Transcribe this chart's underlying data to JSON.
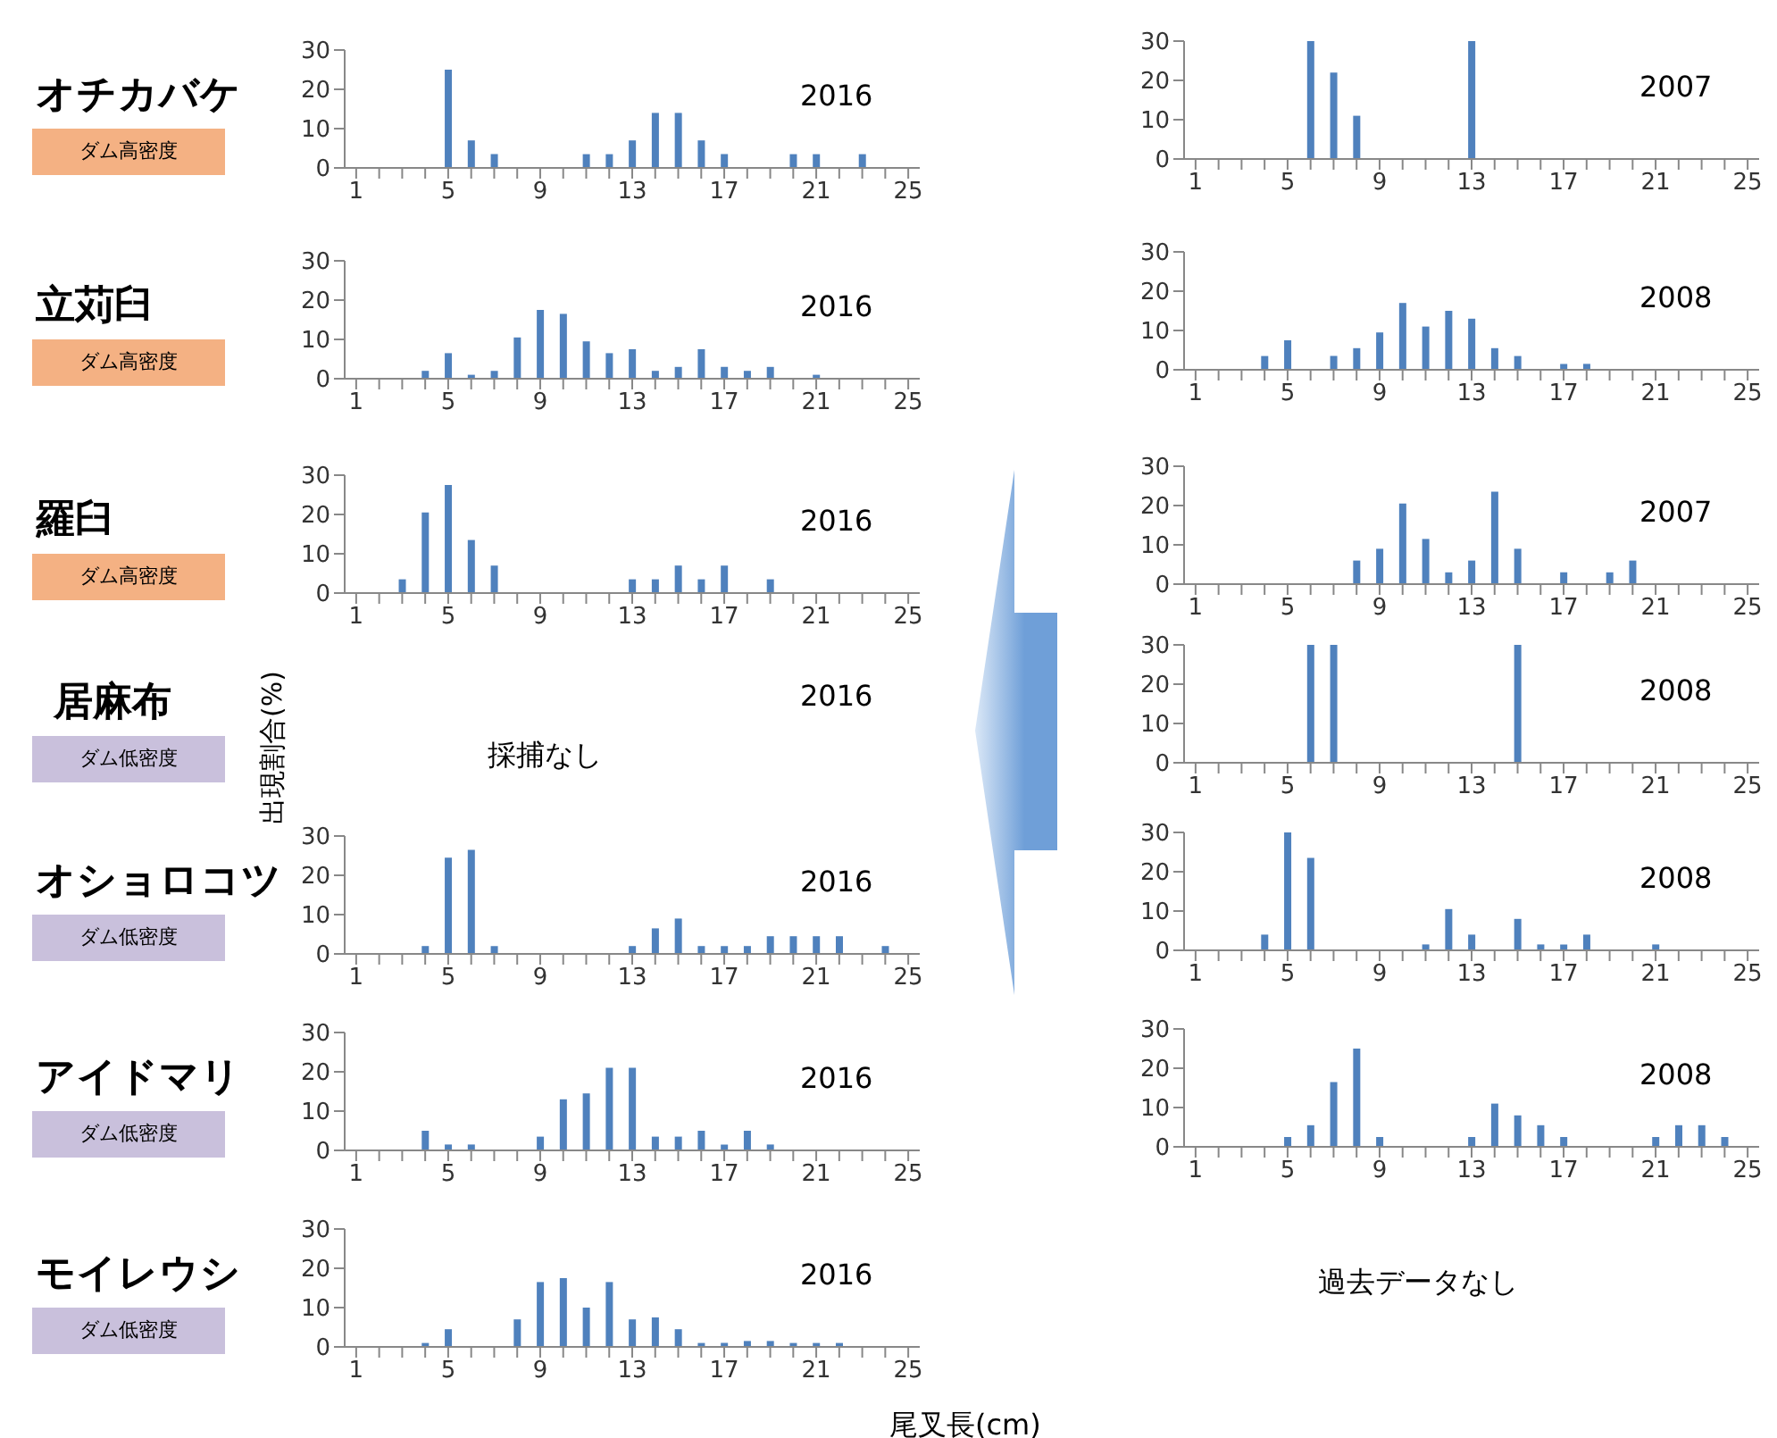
{
  "chart_data": [
    {
      "type": "bar",
      "title": "オチカバケ",
      "subtitle": "2016",
      "annotations": [
        "ダム高密度"
      ],
      "categories": [
        "1",
        null,
        null,
        null,
        "5",
        null,
        null,
        null,
        "9",
        null,
        null,
        null,
        "13",
        null,
        null,
        null,
        "17",
        null,
        null,
        null,
        "21",
        null,
        null,
        null,
        "25"
      ],
      "values": [
        0,
        0,
        0,
        0,
        25,
        7,
        3.5,
        0,
        0,
        0,
        3.5,
        3.5,
        7,
        14,
        14,
        7,
        3.5,
        0,
        0,
        3.5,
        3.5,
        0,
        3.5,
        0,
        0
      ],
      "color": "#4f81bd",
      "ylim": [
        0,
        30
      ],
      "yticks": [
        0,
        10,
        20,
        30
      ]
    },
    {
      "type": "bar",
      "title": "立苅臼",
      "subtitle": "2016",
      "annotations": [
        "ダム高密度"
      ],
      "categories": [
        "1",
        null,
        null,
        null,
        "5",
        null,
        null,
        null,
        "9",
        null,
        null,
        null,
        "13",
        null,
        null,
        null,
        "17",
        null,
        null,
        null,
        "21",
        null,
        null,
        null,
        "25"
      ],
      "values": [
        0,
        0,
        0,
        2,
        6.5,
        1,
        2,
        10.5,
        17.5,
        16.5,
        9.5,
        6.5,
        7.5,
        2,
        3,
        7.5,
        3,
        2,
        3,
        0,
        1,
        0,
        0,
        0,
        0
      ],
      "color": "#4f81bd",
      "ylim": [
        0,
        30
      ],
      "yticks": [
        0,
        10,
        20,
        30
      ]
    },
    {
      "type": "bar",
      "title": "羅臼",
      "subtitle": "2016",
      "annotations": [
        "ダム高密度"
      ],
      "categories": [
        "1",
        null,
        null,
        null,
        "5",
        null,
        null,
        null,
        "9",
        null,
        null,
        null,
        "13",
        null,
        null,
        null,
        "17",
        null,
        null,
        null,
        "21",
        null,
        null,
        null,
        "25"
      ],
      "values": [
        0,
        0,
        3.5,
        20.5,
        27.5,
        13.5,
        7,
        0,
        0,
        0,
        0,
        0,
        3.5,
        3.5,
        7,
        3.5,
        7,
        0,
        3.5,
        0,
        0,
        0,
        0,
        0,
        0
      ],
      "color": "#4f81bd",
      "ylim": [
        0,
        30
      ],
      "yticks": [
        0,
        10,
        20,
        30
      ]
    },
    {
      "type": "other",
      "title": "居麻布",
      "subtitle": "2016",
      "annotations": [
        "ダム低密度",
        "採捕なし"
      ],
      "ylabel": "出現割合(%)"
    },
    {
      "type": "bar",
      "title": "オショロコツ",
      "subtitle": "2016",
      "annotations": [
        "ダム低密度"
      ],
      "categories": [
        "1",
        null,
        null,
        null,
        "5",
        null,
        null,
        null,
        "9",
        null,
        null,
        null,
        "13",
        null,
        null,
        null,
        "17",
        null,
        null,
        null,
        "21",
        null,
        null,
        null,
        "25"
      ],
      "values": [
        0,
        0,
        0,
        2,
        24.5,
        26.5,
        2,
        0,
        0,
        0,
        0,
        0,
        2,
        6.5,
        9,
        2,
        2,
        2,
        4.5,
        4.5,
        4.5,
        4.5,
        0,
        2,
        0
      ],
      "color": "#4f81bd",
      "ylim": [
        0,
        30
      ],
      "yticks": [
        0,
        10,
        20,
        30
      ]
    },
    {
      "type": "bar",
      "title": "アイドマリ",
      "subtitle": "2016",
      "annotations": [
        "ダム低密度"
      ],
      "categories": [
        "1",
        null,
        null,
        null,
        "5",
        null,
        null,
        null,
        "9",
        null,
        null,
        null,
        "13",
        null,
        null,
        null,
        "17",
        null,
        null,
        null,
        "21",
        null,
        null,
        null,
        "25"
      ],
      "values": [
        0,
        0,
        0,
        5,
        1.5,
        1.5,
        0,
        0,
        3.5,
        13,
        14.5,
        21,
        21,
        3.5,
        3.5,
        5,
        1.5,
        5,
        1.5,
        0,
        0,
        0,
        0,
        0,
        0
      ],
      "color": "#4f81bd",
      "ylim": [
        0,
        30
      ],
      "yticks": [
        0,
        10,
        20,
        30
      ]
    },
    {
      "type": "bar",
      "title": "モイレウシ",
      "subtitle": "2016",
      "annotations": [
        "ダム低密度"
      ],
      "xlabel": "尾叉長(cm)",
      "categories": [
        "1",
        null,
        null,
        null,
        "5",
        null,
        null,
        null,
        "9",
        null,
        null,
        null,
        "13",
        null,
        null,
        null,
        "17",
        null,
        null,
        null,
        "21",
        null,
        null,
        null,
        "25"
      ],
      "values": [
        0,
        0,
        0,
        1,
        4.5,
        0,
        0,
        7,
        16.5,
        17.5,
        10,
        16.5,
        7,
        7.5,
        4.5,
        1,
        1,
        1.5,
        1.5,
        1,
        1,
        1,
        0,
        0,
        0
      ],
      "color": "#4f81bd",
      "ylim": [
        0,
        30
      ],
      "yticks": [
        0,
        10,
        20,
        30
      ]
    },
    {
      "type": "bar",
      "subtitle": "2007",
      "categories": [
        "1",
        null,
        null,
        null,
        "5",
        null,
        null,
        null,
        "9",
        null,
        null,
        null,
        "13",
        null,
        null,
        null,
        "17",
        null,
        null,
        null,
        "21",
        null,
        null,
        null,
        "25"
      ],
      "values": [
        0,
        0,
        0,
        0,
        0,
        30,
        22,
        11,
        0,
        0,
        0,
        0,
        30,
        0,
        0,
        0,
        0,
        0,
        0,
        0,
        0,
        0,
        0,
        0,
        0
      ],
      "color": "#4f81bd",
      "ylim": [
        0,
        30
      ],
      "yticks": [
        0,
        10,
        20,
        30
      ]
    },
    {
      "type": "bar",
      "subtitle": "2008",
      "categories": [
        "1",
        null,
        null,
        null,
        "5",
        null,
        null,
        null,
        "9",
        null,
        null,
        null,
        "13",
        null,
        null,
        null,
        "17",
        null,
        null,
        null,
        "21",
        null,
        null,
        null,
        "25"
      ],
      "values": [
        0,
        0,
        0,
        3.5,
        7.5,
        0,
        3.5,
        5.5,
        9.5,
        17,
        11,
        15,
        13,
        5.5,
        3.5,
        0,
        1.5,
        1.5,
        0,
        0,
        0,
        0,
        0,
        0,
        0
      ],
      "color": "#4f81bd",
      "ylim": [
        0,
        30
      ],
      "yticks": [
        0,
        10,
        20,
        30
      ]
    },
    {
      "type": "bar",
      "subtitle": "2007",
      "categories": [
        "1",
        null,
        null,
        null,
        "5",
        null,
        null,
        null,
        "9",
        null,
        null,
        null,
        "13",
        null,
        null,
        null,
        "17",
        null,
        null,
        null,
        "21",
        null,
        null,
        null,
        "25"
      ],
      "values": [
        0,
        0,
        0,
        0,
        0,
        0,
        0,
        6,
        9,
        20.5,
        11.5,
        3,
        6,
        23.5,
        9,
        0,
        3,
        0,
        3,
        6,
        0,
        0,
        0,
        0,
        0
      ],
      "color": "#4f81bd",
      "ylim": [
        0,
        30
      ],
      "yticks": [
        0,
        10,
        20,
        30
      ]
    },
    {
      "type": "bar",
      "subtitle": "2008",
      "categories": [
        "1",
        null,
        null,
        null,
        "5",
        null,
        null,
        null,
        "9",
        null,
        null,
        null,
        "13",
        null,
        null,
        null,
        "17",
        null,
        null,
        null,
        "21",
        null,
        null,
        null,
        "25"
      ],
      "values": [
        0,
        0,
        0,
        0,
        0,
        30,
        30,
        0,
        0,
        0,
        0,
        0,
        0,
        0,
        30,
        0,
        0,
        0,
        0,
        0,
        0,
        0,
        0,
        0,
        0
      ],
      "color": "#4f81bd",
      "ylim": [
        0,
        30
      ],
      "yticks": [
        0,
        10,
        20,
        30
      ]
    },
    {
      "type": "bar",
      "subtitle": "2008",
      "categories": [
        "1",
        null,
        null,
        null,
        "5",
        null,
        null,
        null,
        "9",
        null,
        null,
        null,
        "13",
        null,
        null,
        null,
        "17",
        null,
        null,
        null,
        "21",
        null,
        null,
        null,
        "25"
      ],
      "values": [
        0,
        0,
        0,
        4,
        30,
        23.5,
        0,
        0,
        0,
        0,
        1.5,
        10.5,
        4,
        0,
        8,
        1.5,
        1.5,
        4,
        0,
        0,
        1.5,
        0,
        0,
        0,
        0
      ],
      "color": "#4f81bd",
      "ylim": [
        0,
        30
      ],
      "yticks": [
        0,
        10,
        20,
        30
      ]
    },
    {
      "type": "bar",
      "subtitle": "2008",
      "categories": [
        "1",
        null,
        null,
        null,
        "5",
        null,
        null,
        null,
        "9",
        null,
        null,
        null,
        "13",
        null,
        null,
        null,
        "17",
        null,
        null,
        null,
        "21",
        null,
        null,
        null,
        "25"
      ],
      "values": [
        0,
        0,
        0,
        0,
        2.5,
        5.5,
        16.5,
        25,
        2.5,
        0,
        0,
        0,
        2.5,
        11,
        8,
        5.5,
        2.5,
        0,
        0,
        0,
        2.5,
        5.5,
        5.5,
        2.5,
        0
      ],
      "color": "#4f81bd",
      "ylim": [
        0,
        30
      ],
      "yticks": [
        0,
        10,
        20,
        30
      ]
    },
    {
      "type": "other",
      "annotations": [
        "過去データなし"
      ]
    }
  ]
}
